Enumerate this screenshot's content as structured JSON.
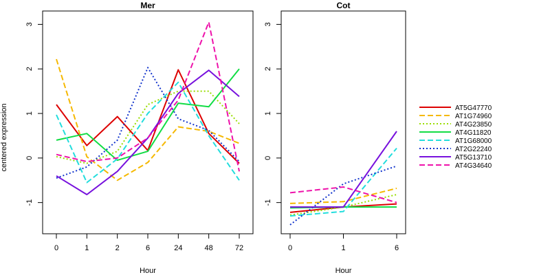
{
  "chart_data": [
    {
      "type": "line",
      "title": "Mer",
      "xlabel": "Hour",
      "ylabel": "centered expression",
      "categories": [
        "0",
        "1",
        "2",
        "6",
        "24",
        "48",
        "72"
      ],
      "ylim": [
        -1.7,
        3.3
      ],
      "yticks": [
        -1,
        0,
        1,
        2,
        3
      ],
      "series": [
        {
          "name": "AT5G47770",
          "color": "#dd0000",
          "dash": "solid",
          "values": [
            1.2,
            0.28,
            0.93,
            0.17,
            1.98,
            0.55,
            -0.12
          ]
        },
        {
          "name": "AT1G74960",
          "color": "#f5b800",
          "dash": "dashed",
          "values": [
            2.22,
            0.03,
            -0.5,
            -0.1,
            0.7,
            0.6,
            0.33
          ]
        },
        {
          "name": "AT4G23850",
          "color": "#99dd00",
          "dash": "dotted",
          "values": [
            0.03,
            -0.12,
            0.15,
            1.2,
            1.5,
            1.5,
            0.77
          ]
        },
        {
          "name": "AT4G11820",
          "color": "#11dd44",
          "dash": "solid",
          "values": [
            0.4,
            0.55,
            -0.05,
            0.15,
            1.23,
            1.15,
            2.0
          ]
        },
        {
          "name": "AT1G68000",
          "color": "#22dddd",
          "dash": "dashed",
          "values": [
            0.97,
            -0.55,
            -0.02,
            1.0,
            1.7,
            0.5,
            -0.5
          ]
        },
        {
          "name": "AT2G22240",
          "color": "#1133cc",
          "dash": "dotted",
          "values": [
            -0.45,
            -0.2,
            0.4,
            2.03,
            0.88,
            0.62,
            -0.08
          ]
        },
        {
          "name": "AT5G13710",
          "color": "#7711dd",
          "dash": "solid",
          "values": [
            -0.4,
            -0.82,
            -0.3,
            0.45,
            1.45,
            1.97,
            1.38
          ]
        },
        {
          "name": "AT4G34640",
          "color": "#ee11aa",
          "dash": "dashed",
          "values": [
            0.08,
            -0.08,
            0.0,
            0.45,
            1.3,
            3.05,
            -0.3
          ]
        }
      ]
    },
    {
      "type": "line",
      "title": "Cot",
      "xlabel": "Hour",
      "ylabel": "",
      "categories": [
        "0",
        "1",
        "6"
      ],
      "ylim": [
        -1.7,
        3.3
      ],
      "yticks": [
        -1,
        0,
        1,
        2,
        3
      ],
      "series": [
        {
          "name": "AT5G47770",
          "color": "#dd0000",
          "dash": "solid",
          "values": [
            -1.22,
            -1.1,
            -1.03
          ]
        },
        {
          "name": "AT1G74960",
          "color": "#f5b800",
          "dash": "dashed",
          "values": [
            -1.02,
            -0.98,
            -0.68
          ]
        },
        {
          "name": "AT4G23850",
          "color": "#99dd00",
          "dash": "dotted",
          "values": [
            -1.28,
            -1.1,
            -0.82
          ]
        },
        {
          "name": "AT4G11820",
          "color": "#11dd44",
          "dash": "solid",
          "values": [
            -1.12,
            -1.1,
            -1.1
          ]
        },
        {
          "name": "AT1G68000",
          "color": "#22dddd",
          "dash": "dashed",
          "values": [
            -1.3,
            -1.2,
            0.22
          ]
        },
        {
          "name": "AT2G22240",
          "color": "#1133cc",
          "dash": "dotted",
          "values": [
            -1.5,
            -0.58,
            -0.18
          ]
        },
        {
          "name": "AT5G13710",
          "color": "#7711dd",
          "dash": "solid",
          "values": [
            -1.1,
            -1.1,
            0.6
          ]
        },
        {
          "name": "AT4G34640",
          "color": "#ee11aa",
          "dash": "dashed",
          "values": [
            -0.78,
            -0.65,
            -1.0
          ]
        }
      ]
    }
  ]
}
